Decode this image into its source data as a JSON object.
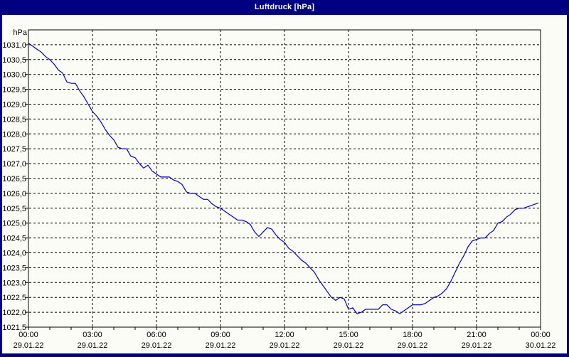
{
  "window": {
    "title": "Luftdruck [hPa]",
    "titlebar_color": "#000080",
    "border_color": "#000080",
    "content_color": "#fcfcf6"
  },
  "chart_data": {
    "type": "line",
    "title": "Luftdruck [hPa]",
    "ylabel": "hPa",
    "xlabel": "",
    "ylim": [
      1021.5,
      1031.5
    ],
    "xlim_hours": [
      0,
      24
    ],
    "grid": "dashed",
    "legend": "none",
    "line_color": "#0000cc",
    "grid_color": "#000000",
    "y_tick_step": 0.5,
    "y_tick_labels": [
      "1031,0",
      "1030,5",
      "1030,0",
      "1029,5",
      "1029,0",
      "1028,5",
      "1028,0",
      "1027,5",
      "1027,0",
      "1026,5",
      "1026,0",
      "1025,5",
      "1025,0",
      "1024,5",
      "1024,0",
      "1023,5",
      "1023,0",
      "1022,5",
      "1022,0",
      "1021,5"
    ],
    "x_ticks": [
      {
        "time": "00:00",
        "date": "29.01.22"
      },
      {
        "time": "03:00",
        "date": "29.01.22"
      },
      {
        "time": "06:00",
        "date": "29.01.22"
      },
      {
        "time": "09:00",
        "date": "29.01.22"
      },
      {
        "time": "12:00",
        "date": "29.01.22"
      },
      {
        "time": "15:00",
        "date": "29.01.22"
      },
      {
        "time": "18:00",
        "date": "29.01.22"
      },
      {
        "time": "21:00",
        "date": "29.01.22"
      },
      {
        "time": "00:00",
        "date": "30.01.22"
      }
    ],
    "x_hours": [
      0,
      0.2,
      0.4,
      0.6,
      0.8,
      1,
      1.2,
      1.4,
      1.6,
      1.8,
      2,
      2.2,
      2.4,
      2.6,
      2.8,
      3,
      3.2,
      3.4,
      3.6,
      3.8,
      4,
      4.2,
      4.4,
      4.6,
      4.8,
      5,
      5.2,
      5.4,
      5.6,
      5.8,
      6,
      6.2,
      6.4,
      6.6,
      6.8,
      7,
      7.2,
      7.4,
      7.6,
      7.8,
      8,
      8.2,
      8.4,
      8.6,
      8.8,
      9,
      9.2,
      9.4,
      9.6,
      9.8,
      10,
      10.2,
      10.4,
      10.6,
      10.8,
      11,
      11.2,
      11.4,
      11.6,
      11.8,
      12,
      12.2,
      12.4,
      12.6,
      12.8,
      13,
      13.2,
      13.4,
      13.6,
      13.8,
      14,
      14.2,
      14.4,
      14.6,
      14.8,
      15,
      15.2,
      15.4,
      15.6,
      15.8,
      16,
      16.2,
      16.4,
      16.6,
      16.8,
      17,
      17.2,
      17.4,
      17.6,
      17.8,
      18,
      18.2,
      18.4,
      18.6,
      18.8,
      19,
      19.2,
      19.4,
      19.6,
      19.8,
      20,
      20.2,
      20.4,
      20.6,
      20.8,
      21,
      21.2,
      21.4,
      21.6,
      21.8,
      22,
      22.2,
      22.4,
      22.6,
      22.8,
      23,
      23.2,
      23.4,
      23.6,
      23.8,
      23.9
    ],
    "values": [
      1031.05,
      1030.95,
      1030.85,
      1030.75,
      1030.6,
      1030.5,
      1030.35,
      1030.15,
      1030.05,
      1029.75,
      1029.7,
      1029.7,
      1029.45,
      1029.25,
      1029,
      1028.75,
      1028.6,
      1028.4,
      1028.15,
      1027.95,
      1027.8,
      1027.55,
      1027.5,
      1027.5,
      1027.25,
      1027.2,
      1027,
      1026.85,
      1026.95,
      1026.75,
      1026.65,
      1026.55,
      1026.55,
      1026.55,
      1026.45,
      1026.4,
      1026.3,
      1026.05,
      1026,
      1026,
      1025.9,
      1025.8,
      1025.8,
      1025.65,
      1025.55,
      1025.5,
      1025.4,
      1025.3,
      1025.2,
      1025.1,
      1025.1,
      1025.05,
      1024.95,
      1024.7,
      1024.55,
      1024.7,
      1024.85,
      1024.8,
      1024.6,
      1024.45,
      1024.35,
      1024.15,
      1024.05,
      1023.9,
      1023.75,
      1023.65,
      1023.5,
      1023.35,
      1023.1,
      1022.9,
      1022.7,
      1022.5,
      1022.4,
      1022.5,
      1022.45,
      1022.1,
      1022.15,
      1021.95,
      1022,
      1022.1,
      1022.1,
      1022.1,
      1022.1,
      1022.25,
      1022.25,
      1022.1,
      1022.05,
      1021.95,
      1022.05,
      1022.15,
      1022.25,
      1022.25,
      1022.25,
      1022.3,
      1022.4,
      1022.5,
      1022.55,
      1022.65,
      1022.8,
      1023.05,
      1023.35,
      1023.65,
      1023.9,
      1024.2,
      1024.4,
      1024.45,
      1024.5,
      1024.5,
      1024.65,
      1024.75,
      1025,
      1025.05,
      1025.2,
      1025.3,
      1025.45,
      1025.5,
      1025.5,
      1025.55,
      1025.6,
      1025.65,
      1025.68
    ]
  }
}
